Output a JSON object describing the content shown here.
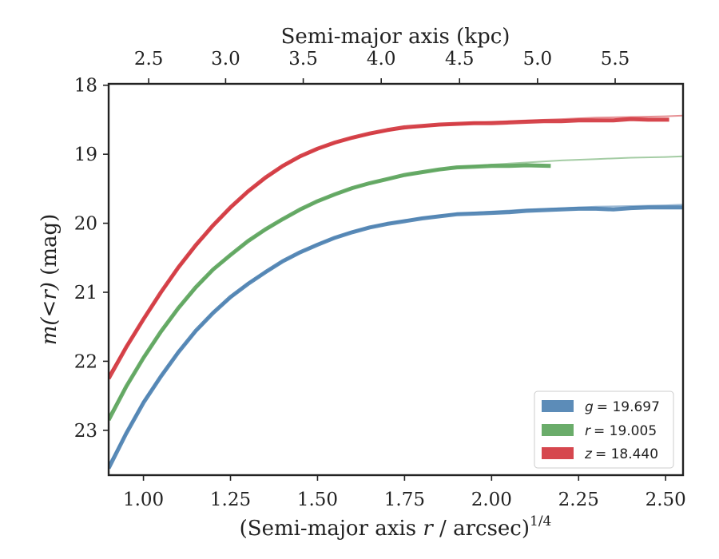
{
  "chart_data": {
    "type": "line",
    "title": "",
    "xlabel_prefix": "(Semi-major axis ",
    "xlabel_italic": "r",
    "xlabel_suffix": " / arcsec)",
    "xlabel_sup": "1/4",
    "ylabel_prefix": "m(<r)",
    "ylabel_suffix": " (mag)",
    "top_xlabel": "Semi-major axis (kpc)",
    "xlim": [
      0.9,
      2.55
    ],
    "ylim": [
      23.65,
      17.98
    ],
    "y_inverted": true,
    "xticks": [
      1.0,
      1.25,
      1.5,
      1.75,
      2.0,
      2.25,
      2.5
    ],
    "xtick_labels": [
      "1.00",
      "1.25",
      "1.50",
      "1.75",
      "2.00",
      "2.25",
      "2.50"
    ],
    "yticks": [
      18,
      19,
      20,
      21,
      22,
      23
    ],
    "ytick_labels": [
      "18",
      "19",
      "20",
      "21",
      "22",
      "23"
    ],
    "top_ticks_kpc": [
      2.5,
      3.0,
      3.5,
      4.0,
      4.5,
      5.0,
      5.5
    ],
    "top_tick_labels": [
      "2.5",
      "3.0",
      "3.5",
      "4.0",
      "4.5",
      "5.0",
      "5.5"
    ],
    "top_tick_positions_x": [
      1.015,
      1.236,
      1.459,
      1.683,
      1.908,
      2.132,
      2.355
    ],
    "legend_position": "lower-right",
    "series": [
      {
        "name": "g = 19.697",
        "legend_var": "g",
        "legend_val": "= 19.697",
        "color": "#4a7fb0",
        "x": [
          0.9,
          0.95,
          1.0,
          1.05,
          1.1,
          1.15,
          1.2,
          1.25,
          1.3,
          1.35,
          1.4,
          1.45,
          1.5,
          1.55,
          1.6,
          1.65,
          1.7,
          1.75,
          1.8,
          1.85,
          1.9,
          1.95,
          2.0,
          2.05,
          2.1,
          2.15,
          2.2,
          2.25,
          2.3,
          2.35,
          2.4,
          2.45,
          2.5,
          2.55
        ],
        "y": [
          23.55,
          23.05,
          22.6,
          22.22,
          21.87,
          21.56,
          21.3,
          21.07,
          20.88,
          20.71,
          20.55,
          20.42,
          20.31,
          20.21,
          20.13,
          20.06,
          20.01,
          19.97,
          19.93,
          19.9,
          19.87,
          19.86,
          19.85,
          19.84,
          19.82,
          19.81,
          19.8,
          19.79,
          19.79,
          19.8,
          19.78,
          19.77,
          19.77,
          19.77
        ],
        "model_x": [
          0.9,
          1.0,
          1.1,
          1.2,
          1.3,
          1.4,
          1.5,
          1.6,
          1.7,
          1.8,
          1.9,
          2.0,
          2.1,
          2.2,
          2.3,
          2.4,
          2.5,
          2.55
        ],
        "model_y": [
          23.5,
          22.58,
          21.86,
          21.29,
          20.87,
          20.55,
          20.3,
          20.12,
          20.0,
          19.92,
          19.86,
          19.83,
          19.8,
          19.78,
          19.76,
          19.75,
          19.74,
          19.73
        ]
      },
      {
        "name": "r = 19.005",
        "legend_var": "r",
        "legend_val": "= 19.005",
        "color": "#5aa35a",
        "x": [
          0.9,
          0.95,
          1.0,
          1.05,
          1.1,
          1.15,
          1.2,
          1.25,
          1.3,
          1.35,
          1.4,
          1.45,
          1.5,
          1.55,
          1.6,
          1.65,
          1.7,
          1.75,
          1.8,
          1.85,
          1.9,
          1.95,
          2.0,
          2.05,
          2.1,
          2.17
        ],
        "y": [
          22.85,
          22.37,
          21.95,
          21.57,
          21.23,
          20.93,
          20.67,
          20.46,
          20.26,
          20.09,
          19.94,
          19.8,
          19.68,
          19.58,
          19.49,
          19.42,
          19.36,
          19.3,
          19.26,
          19.22,
          19.19,
          19.18,
          19.17,
          19.17,
          19.16,
          19.17
        ],
        "model_x": [
          0.9,
          1.0,
          1.1,
          1.2,
          1.3,
          1.4,
          1.5,
          1.6,
          1.7,
          1.8,
          1.9,
          2.0,
          2.1,
          2.2,
          2.3,
          2.4,
          2.5,
          2.55
        ],
        "model_y": [
          22.8,
          21.95,
          21.23,
          20.67,
          20.26,
          19.94,
          19.68,
          19.49,
          19.36,
          19.26,
          19.19,
          19.15,
          19.12,
          19.09,
          19.07,
          19.05,
          19.04,
          19.03
        ]
      },
      {
        "name": "z = 18.440",
        "legend_var": "z",
        "legend_val": "= 18.440",
        "color": "#d1333b",
        "x": [
          0.9,
          0.95,
          1.0,
          1.05,
          1.1,
          1.15,
          1.2,
          1.25,
          1.3,
          1.35,
          1.4,
          1.45,
          1.5,
          1.55,
          1.6,
          1.65,
          1.7,
          1.75,
          1.8,
          1.85,
          1.9,
          1.95,
          2.0,
          2.05,
          2.1,
          2.15,
          2.2,
          2.25,
          2.3,
          2.35,
          2.4,
          2.45,
          2.51
        ],
        "y": [
          22.25,
          21.8,
          21.39,
          21.0,
          20.64,
          20.32,
          20.03,
          19.77,
          19.54,
          19.34,
          19.17,
          19.03,
          18.92,
          18.83,
          18.76,
          18.7,
          18.65,
          18.61,
          18.59,
          18.57,
          18.56,
          18.55,
          18.55,
          18.54,
          18.53,
          18.52,
          18.52,
          18.51,
          18.51,
          18.51,
          18.49,
          18.5,
          18.5
        ],
        "model_x": [
          0.9,
          1.0,
          1.1,
          1.2,
          1.3,
          1.4,
          1.5,
          1.6,
          1.7,
          1.8,
          1.9,
          2.0,
          2.1,
          2.2,
          2.3,
          2.4,
          2.5,
          2.55
        ],
        "model_y": [
          22.2,
          21.39,
          20.64,
          20.03,
          19.54,
          19.17,
          18.92,
          18.76,
          18.66,
          18.6,
          18.56,
          18.53,
          18.51,
          18.49,
          18.47,
          18.46,
          18.45,
          18.44
        ]
      }
    ]
  }
}
